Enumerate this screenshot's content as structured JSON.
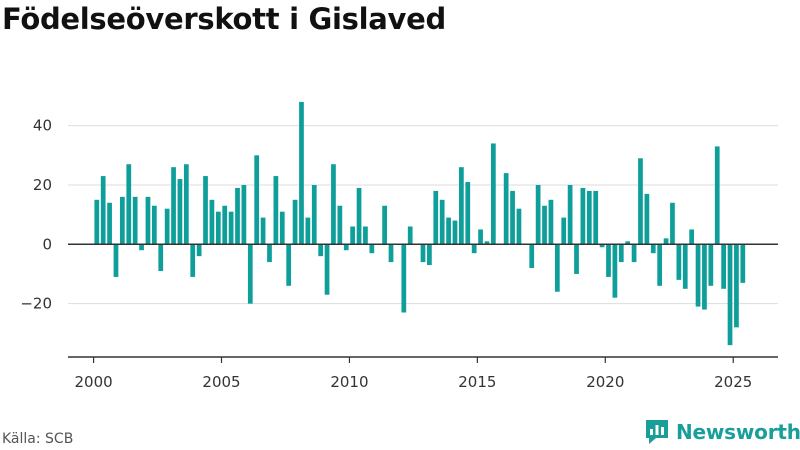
{
  "title": "Födelseöverskott i Gislaved",
  "source": "Källa: SCB",
  "brand": {
    "name": "Newsworthy",
    "icon": "newsworthy-logo-icon"
  },
  "colors": {
    "bar": "#0e9f9a",
    "axis": "#333333",
    "grid": "#dddddd",
    "brand": "#1a9e9a"
  },
  "chart_data": {
    "type": "bar",
    "xlabel": "",
    "ylabel": "",
    "x_ticks": [
      2000,
      2005,
      2010,
      2015,
      2020,
      2025
    ],
    "y_ticks": [
      -20,
      0,
      20,
      40
    ],
    "y_tick_labels": [
      "−20",
      "0",
      "20",
      "40"
    ],
    "xlim": [
      1999.0,
      2026.75
    ],
    "ylim": [
      -38,
      50
    ],
    "grid": "horizontal",
    "x_start": 2000.125,
    "x_step": 0.25,
    "values": [
      15,
      23,
      14,
      -11,
      16,
      27,
      16,
      -2,
      16,
      13,
      -9,
      12,
      26,
      22,
      27,
      -11,
      -4,
      23,
      15,
      11,
      13,
      11,
      19,
      20,
      -20,
      30,
      9,
      -6,
      23,
      11,
      -14,
      15,
      48,
      9,
      20,
      -4,
      -17,
      27,
      13,
      -2,
      6,
      19,
      6,
      -3,
      0,
      13,
      -6,
      0,
      -23,
      6,
      0,
      -6,
      -7,
      18,
      15,
      9,
      8,
      26,
      21,
      -3,
      5,
      1,
      34,
      0,
      24,
      18,
      12,
      0,
      -8,
      20,
      13,
      15,
      -16,
      9,
      20,
      -10,
      19,
      18,
      18,
      -1,
      -11,
      -18,
      -6,
      1,
      -6,
      29,
      17,
      -3,
      -14,
      2,
      14,
      -12,
      -15,
      5,
      -21,
      -22,
      -14,
      33,
      -15,
      -34,
      -28,
      -13
    ]
  }
}
